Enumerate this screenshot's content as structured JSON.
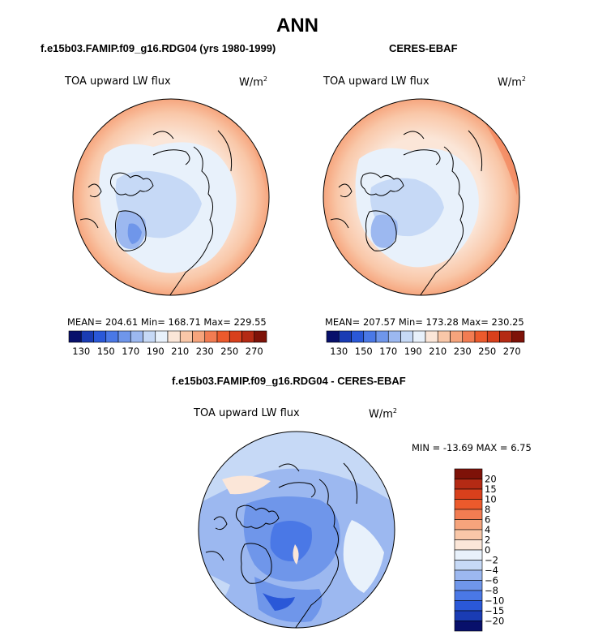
{
  "page": {
    "title": "ANN",
    "diff_title": "f.e15b03.FAMIP.f09_g16.RDG04 - CERES-EBAF"
  },
  "chart_data": [
    {
      "type": "heatmap",
      "projection": "polar-stereographic-north",
      "title": "f.e15b03.FAMIP.f09_g16.RDG04 (yrs 1980-1999)",
      "variable": "TOA upward LW flux",
      "units_base": "W/m",
      "units_exp": "2",
      "stats_text": "MEAN= 204.61   Min= 168.71   Max= 229.55",
      "mean": 204.61,
      "min": 168.71,
      "max": 229.55,
      "colorbar": {
        "ticks": [
          "130",
          "150",
          "170",
          "190",
          "210",
          "230",
          "250",
          "270"
        ],
        "colors": [
          "#08106b",
          "#1a3cb4",
          "#2a58d8",
          "#4a78e6",
          "#6f96ea",
          "#9cb8f0",
          "#c6d9f6",
          "#e8f1fb",
          "#fbe6d8",
          "#f9c7a8",
          "#f6a47c",
          "#f27c52",
          "#ec5a2c",
          "#d8401c",
          "#b42a14",
          "#7e1208"
        ]
      }
    },
    {
      "type": "heatmap",
      "projection": "polar-stereographic-north",
      "title": "CERES-EBAF",
      "variable": "TOA upward LW flux",
      "units_base": "W/m",
      "units_exp": "2",
      "stats_text": "MEAN= 207.57   Min= 173.28   Max= 230.25",
      "mean": 207.57,
      "min": 173.28,
      "max": 230.25,
      "colorbar": {
        "ticks": [
          "130",
          "150",
          "170",
          "190",
          "210",
          "230",
          "250",
          "270"
        ],
        "colors": [
          "#08106b",
          "#1a3cb4",
          "#2a58d8",
          "#4a78e6",
          "#6f96ea",
          "#9cb8f0",
          "#c6d9f6",
          "#e8f1fb",
          "#fbe6d8",
          "#f9c7a8",
          "#f6a47c",
          "#f27c52",
          "#ec5a2c",
          "#d8401c",
          "#b42a14",
          "#7e1208"
        ]
      }
    },
    {
      "type": "heatmap",
      "projection": "polar-stereographic-north",
      "title": "f.e15b03.FAMIP.f09_g16.RDG04 - CERES-EBAF",
      "variable": "TOA upward LW flux",
      "units_base": "W/m",
      "units_exp": "2",
      "stats_text": "MIN = -13.69 MAX =    6.75",
      "min": -13.69,
      "max": 6.75,
      "colorbar": {
        "orientation": "vertical",
        "ticks": [
          "20",
          "15",
          "10",
          "8",
          "6",
          "4",
          "2",
          "0",
          "−2",
          "−4",
          "−6",
          "−8",
          "−10",
          "−15",
          "−20"
        ],
        "colors": [
          "#7e1208",
          "#b42a14",
          "#d8401c",
          "#ec5a2c",
          "#f27c52",
          "#f6a47c",
          "#f9c7a8",
          "#fbe6d8",
          "#e8f1fb",
          "#c6d9f6",
          "#9cb8f0",
          "#6f96ea",
          "#4a78e6",
          "#2a58d8",
          "#1a3cb4",
          "#08106b"
        ]
      }
    }
  ]
}
